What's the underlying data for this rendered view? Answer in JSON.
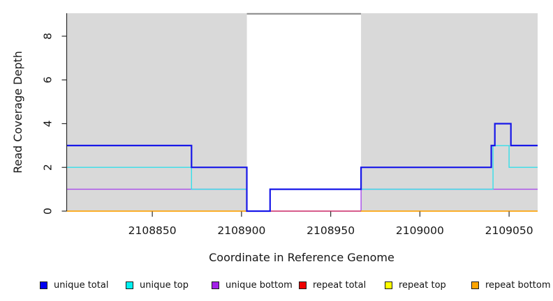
{
  "figure": {
    "background": "#ffffff",
    "plot_area_bg": "#ffffff"
  },
  "chart_data": {
    "type": "line",
    "subtype": "step",
    "title": "",
    "xlabel": "Coordinate in Reference Genome",
    "ylabel": "Read Coverage Depth",
    "x_ticks": [
      "2108850",
      "2108900",
      "2108950",
      "2109000",
      "2109050"
    ],
    "x_tick_values": [
      2108850,
      2108900,
      2108950,
      2109000,
      2109050
    ],
    "y_ticks": [
      "0",
      "2",
      "4",
      "6",
      "8"
    ],
    "y_tick_values": [
      0,
      2,
      4,
      6,
      8
    ],
    "xlim": [
      2108802,
      2109066
    ],
    "ylim": [
      0,
      9.05
    ],
    "grid": false,
    "legend_position": "bottom",
    "shaded_regions": [
      {
        "name": "unique-region-left",
        "x0": 2108802,
        "x1": 2108903,
        "fill": "#d9d9d9"
      },
      {
        "name": "unique-region-right",
        "x0": 2108967,
        "x1": 2109066,
        "fill": "#d9d9d9"
      }
    ],
    "gap_region": {
      "name": "repeat-gap",
      "x0": 2108903,
      "x1": 2108967,
      "fill": "#ffffff",
      "top_border_color": "#8c8c8c"
    },
    "series": [
      {
        "name": "unique total",
        "color": "#0000f0",
        "line_color": "#1717e8",
        "line_width": 2.2,
        "segments": [
          [
            [
              2108802,
              3
            ],
            [
              2108872,
              3
            ],
            [
              2108872,
              2
            ],
            [
              2108903,
              2
            ],
            [
              2108903,
              0
            ],
            [
              2108916,
              0
            ],
            [
              2108916,
              1
            ],
            [
              2108967,
              1
            ],
            [
              2108967,
              2
            ],
            [
              2109040,
              2
            ],
            [
              2109040,
              3
            ],
            [
              2109042,
              3
            ],
            [
              2109042,
              4
            ],
            [
              2109051,
              4
            ],
            [
              2109051,
              3
            ],
            [
              2109066,
              3
            ]
          ]
        ]
      },
      {
        "name": "unique top",
        "color": "#00f0f0",
        "line_color": "#35dfe9",
        "line_width": 1.4,
        "segments": [
          [
            [
              2108802,
              2
            ],
            [
              2108872,
              2
            ],
            [
              2108872,
              1
            ],
            [
              2108903,
              1
            ],
            [
              2108903,
              0
            ],
            [
              2108916,
              0
            ],
            [
              2108916,
              1
            ],
            [
              2109041,
              1
            ],
            [
              2109041,
              3
            ],
            [
              2109050,
              3
            ],
            [
              2109050,
              2
            ],
            [
              2109066,
              2
            ]
          ]
        ]
      },
      {
        "name": "unique bottom",
        "color": "#a21fe8",
        "line_color": "#a94bec",
        "line_width": 1.4,
        "segments": [
          [
            [
              2108802,
              1
            ],
            [
              2108903,
              1
            ],
            [
              2108903,
              0
            ],
            [
              2108967,
              0
            ],
            [
              2108967,
              1
            ],
            [
              2109066,
              1
            ]
          ]
        ]
      },
      {
        "name": "repeat total",
        "color": "#ee0000",
        "line_color": "#d84468",
        "line_width": 1.4,
        "segments": [
          [
            [
              2108903,
              0
            ],
            [
              2108967,
              0
            ]
          ]
        ]
      },
      {
        "name": "repeat top",
        "color": "#ffff00",
        "line_color": "#f0d800",
        "line_width": 1.4,
        "segments": [
          [
            [
              2108802,
              0
            ],
            [
              2108903,
              0
            ]
          ],
          [
            [
              2108967,
              0
            ],
            [
              2109066,
              0
            ]
          ]
        ]
      },
      {
        "name": "repeat bottom",
        "color": "#ffa500",
        "line_color": "#ff9e12",
        "line_width": 1.4,
        "segments": [
          [
            [
              2108802,
              0
            ],
            [
              2108903,
              0
            ]
          ],
          [
            [
              2108967,
              0
            ],
            [
              2109066,
              0
            ]
          ]
        ]
      }
    ]
  }
}
